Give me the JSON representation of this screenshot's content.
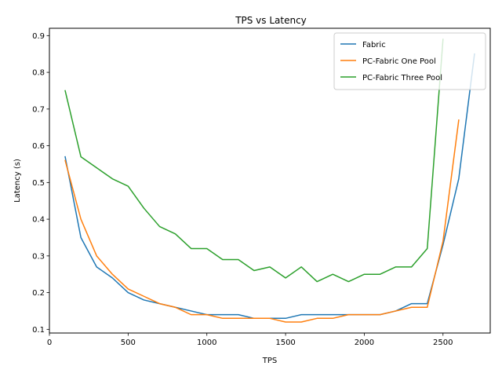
{
  "chart_data": {
    "type": "line",
    "title": "TPS vs Latency",
    "xlabel": "TPS",
    "ylabel": "Latency (s)",
    "xlim": [
      0,
      2800
    ],
    "ylim": [
      0.09,
      0.92
    ],
    "xticks": [
      0,
      500,
      1000,
      1500,
      2000,
      2500
    ],
    "yticks": [
      0.1,
      0.2,
      0.3,
      0.4,
      0.5,
      0.6,
      0.7,
      0.8,
      0.9
    ],
    "grid": false,
    "legend_position": "top-right",
    "series": [
      {
        "name": "Fabric",
        "color": "#1f77b4",
        "x": [
          100,
          200,
          300,
          400,
          500,
          600,
          700,
          800,
          900,
          1000,
          1100,
          1200,
          1300,
          1400,
          1500,
          1600,
          1700,
          1800,
          1900,
          2000,
          2100,
          2200,
          2300,
          2400,
          2500,
          2600,
          2700
        ],
        "y": [
          0.57,
          0.35,
          0.27,
          0.24,
          0.2,
          0.18,
          0.17,
          0.16,
          0.15,
          0.14,
          0.14,
          0.14,
          0.13,
          0.13,
          0.13,
          0.14,
          0.14,
          0.14,
          0.14,
          0.14,
          0.14,
          0.15,
          0.17,
          0.17,
          0.33,
          0.51,
          0.85
        ]
      },
      {
        "name": "PC-Fabric One Pool",
        "color": "#ff7f0e",
        "x": [
          100,
          200,
          300,
          400,
          500,
          600,
          700,
          800,
          900,
          1000,
          1100,
          1200,
          1300,
          1400,
          1500,
          1600,
          1700,
          1800,
          1900,
          2000,
          2100,
          2200,
          2300,
          2400,
          2500,
          2600
        ],
        "y": [
          0.56,
          0.4,
          0.3,
          0.25,
          0.21,
          0.19,
          0.17,
          0.16,
          0.14,
          0.14,
          0.13,
          0.13,
          0.13,
          0.13,
          0.12,
          0.12,
          0.13,
          0.13,
          0.14,
          0.14,
          0.14,
          0.15,
          0.16,
          0.16,
          0.34,
          0.67
        ]
      },
      {
        "name": "PC-Fabric Three Pool",
        "color": "#2ca02c",
        "x": [
          100,
          200,
          300,
          400,
          500,
          600,
          700,
          800,
          900,
          1000,
          1100,
          1200,
          1300,
          1400,
          1500,
          1600,
          1700,
          1800,
          1900,
          2000,
          2100,
          2200,
          2300,
          2400,
          2500
        ],
        "y": [
          0.75,
          0.57,
          0.54,
          0.51,
          0.49,
          0.43,
          0.38,
          0.36,
          0.32,
          0.32,
          0.29,
          0.29,
          0.26,
          0.27,
          0.24,
          0.27,
          0.23,
          0.25,
          0.23,
          0.25,
          0.25,
          0.27,
          0.27,
          0.32,
          0.89
        ]
      }
    ]
  }
}
